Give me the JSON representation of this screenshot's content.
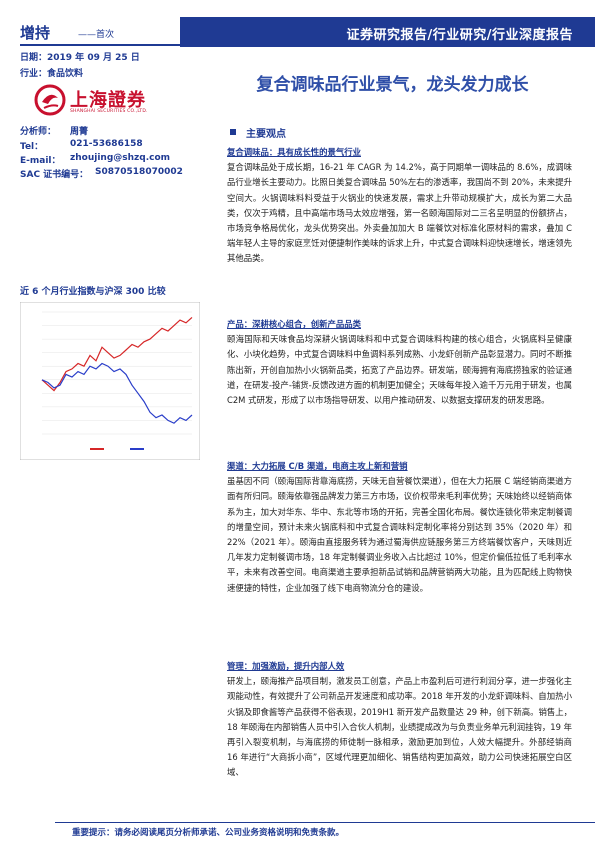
{
  "header": {
    "rating": "增持",
    "first_cover": "——首次",
    "banner": "证券研究报告/行业研究/行业深度报告",
    "date": "日期：2019 年 09 月 25 日",
    "industry": "行业：食品饮料",
    "headline": "复合调味品行业景气，龙头发力成长",
    "logo_cn": "上海證券",
    "logo_en": "SHANGHAI SECURITIES CO.,LTD."
  },
  "analyst": {
    "name_label": "分析师：",
    "name": "周菁",
    "tel_label": "Tel：",
    "tel": "021-53686158",
    "email_label": "E-mail：",
    "email": "zhoujing@shzq.com",
    "sac_label": "SAC 证书编号：",
    "sac": "S0870518070002"
  },
  "chart_data": {
    "type": "line",
    "title": "近 6 个月行业指数与沪深 300 比较",
    "ylim": [
      -20,
      25
    ],
    "series": [
      {
        "name": "",
        "color": "#d62728",
        "values": [
          0,
          -2,
          -4,
          -1,
          3,
          4,
          6,
          5,
          9,
          7,
          12,
          10,
          8,
          9,
          11,
          13,
          12,
          14,
          15,
          17,
          19,
          18,
          20,
          22,
          21,
          23
        ]
      },
      {
        "name": "",
        "color": "#2a3ec9",
        "values": [
          0,
          -1,
          -3,
          -2,
          2,
          1,
          3,
          2,
          5,
          4,
          6,
          5,
          3,
          4,
          2,
          -2,
          -5,
          -8,
          -12,
          -14,
          -13,
          -15,
          -16,
          -14,
          -15,
          -13
        ]
      }
    ]
  },
  "main_title": "主要观点",
  "sections": [
    {
      "heading": "复合调味品：具有成长性的景气行业",
      "body": "复合调味品处于成长期，16-21 年 CAGR 为 14.2%，高于同期单一调味品的 8.6%，成调味品行业增长主要动力。比照日美复合调味品 50%左右的渗透率，我国尚不到 20%，未来提升空间大。火锅调味料料受益于火锅业的快速发展，需求上升带动规模扩大，成长为第二大品类，仅次于鸡精，且中高端市场马太效应增强，第一名颐海国际对二三名呈明显的份额挤占，市场竞争格局优化，龙头优势突出。外卖叠加加大 B 端餐饮对标准化原材料的需求，叠加 C 端年轻人主导的家庭烹饪对便捷制作美味的诉求上升，中式复合调味料迎快速增长，增速领先其他品类。"
    },
    {
      "heading": "产品：深耕核心组合，创新产品品类",
      "body": "颐海国际和天味食品均深耕火锅调味料和中式复合调味料构建的核心组合，火锅底料呈健康化、小块化趋势，中式复合调味料中鱼调料系列成熟、小龙虾创新产品彰显潜力。同时不断推陈出新，开创自加热小火锅新品类，拓宽了产品边界。研发端，颐海拥有海底捞独家的验证通道，在研发-投产-铺货-反馈改进方面的机制更加健全；天味每年投入逾千万元用于研发，也属 C2M 式研发，形成了以市场指导研发、以用户推动研发、以数据支撑研发的研发思路。"
    },
    {
      "heading": "渠道：大力拓展 C/B 渠道，电商主攻上新和营销",
      "body": "虽基因不同（颐海国际背靠海底捞，天味无自营餐饮渠道），但在大力拓展 C 端经销商渠道方面有所归同。颐海依靠强品牌发力第三方市场，议价权带来毛利率优势；天味始终以经销商体系为主，加大对华东、华中、东北等市场的开拓，完善全国化布局。餐饮连锁化带来定制餐调的增量空间，预计未来火锅底料和中式复合调味料定制化率将分别达到 35%（2020 年）和 22%（2021 年）。颐海由直接服务转为通过蜀海供应链服务第三方终端餐饮客户，天味则近几年发力定制餐调市场，18 年定制餐调业务收入占比超过 10%，但定价偏低拉低了毛利率水平，未来有改善空间。电商渠道主要承担新品试销和品牌营销两大功能，且为匹配线上购物快速便捷的特性，企业加强了线下电商物流分仓的建设。"
    },
    {
      "heading": "管理：加强激励，提升内部人效",
      "body": "研发上，颐海推产品项目制，激发员工创意，产品上市盈利后可进行利润分享，进一步强化主观能动性，有效提升了公司新品开发速度和成功率。2018 年开发的小龙虾调味料、自加热小火锅及即食酱等产品获得不俗表现，2019H1 新开发产品数量达 29 种，创下新高。销售上，18 年颐海在内部销售人员中引入合伙人机制，业绩提成改为与负责业务单元利润挂钩，19 年再引入裂变机制，与海底捞的师徒制一脉相承，激励更加到位，人效大幅提升。外部经销商 16 年进行“大商拆小商”，区域代理更加细化、销售结构更加高效，助力公司快速拓展空白区域、"
    }
  ],
  "footer": "重要提示：请务必阅读尾页分析师承诺、公司业务资格说明和免责条款。"
}
